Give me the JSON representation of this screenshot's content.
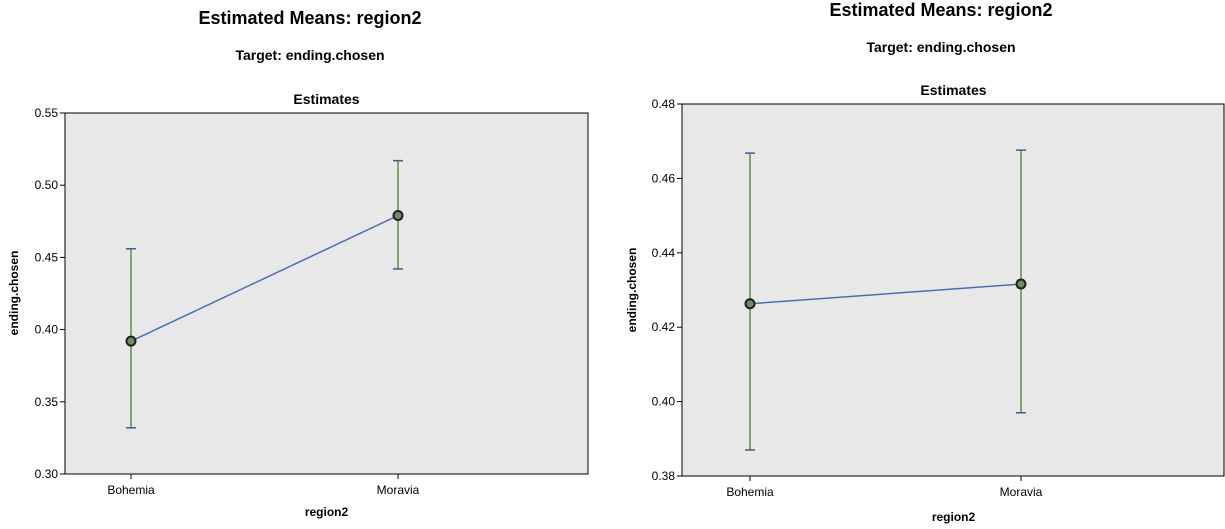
{
  "charts": [
    {
      "title": "Estimated Means: region2",
      "subtitle": "Target: ending.chosen",
      "panel_title": "Estimates"
    },
    {
      "title": "Estimated Means: region2",
      "subtitle": "Target: ending.chosen",
      "panel_title": "Estimates"
    }
  ],
  "colors": {
    "plot_background": "#e8e8e8",
    "line": "#4a6fb5",
    "error_bar": "#7fa86a",
    "error_cap": "#4a5a8a",
    "marker_fill": "#6f8f5f",
    "marker_stroke": "#1f1f1f"
  },
  "chart_data": [
    {
      "type": "line",
      "title": "Estimates",
      "xlabel": "region2",
      "ylabel": "ending.chosen",
      "categories": [
        "Bohemia",
        "Moravia"
      ],
      "series": [
        {
          "values": [
            0.392,
            0.479
          ],
          "error_low": [
            0.332,
            0.442
          ],
          "error_high": [
            0.456,
            0.517
          ]
        }
      ],
      "ylim": [
        0.3,
        0.55
      ],
      "yticks": [
        "0.30",
        "0.35",
        "0.40",
        "0.45",
        "0.50",
        "0.55"
      ],
      "grid": false
    },
    {
      "type": "line",
      "title": "Estimates",
      "xlabel": "region2",
      "ylabel": "ending.chosen",
      "categories": [
        "Bohemia",
        "Moravia"
      ],
      "series": [
        {
          "values": [
            0.4263,
            0.4316
          ],
          "error_low": [
            0.387,
            0.397
          ],
          "error_high": [
            0.4668,
            0.4676
          ]
        }
      ],
      "ylim": [
        0.38,
        0.48
      ],
      "yticks": [
        "0.38",
        "0.40",
        "0.42",
        "0.44",
        "0.46",
        "0.48"
      ],
      "grid": false
    }
  ]
}
